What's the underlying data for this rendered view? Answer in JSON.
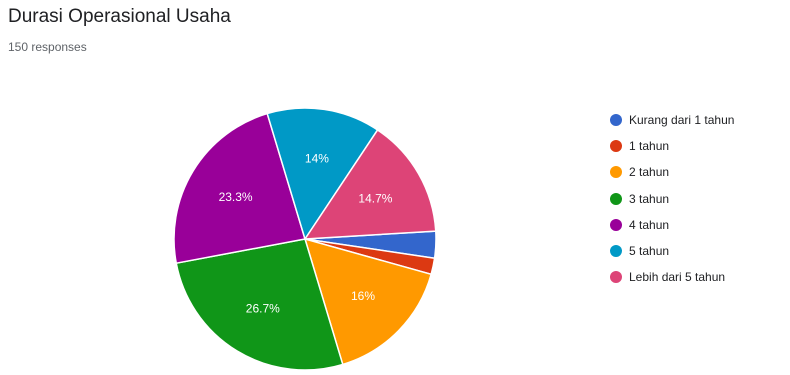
{
  "header": {
    "title": "Durasi Operasional Usaha",
    "subtitle": "150 responses"
  },
  "chart_data": {
    "type": "pie",
    "title": "Durasi Operasional Usaha",
    "subtitle": "150 responses",
    "legend_position": "right",
    "categories": [
      "Kurang dari 1 tahun",
      "1 tahun",
      "2 tahun",
      "3 tahun",
      "4 tahun",
      "5 tahun",
      "Lebih dari 5 tahun"
    ],
    "values": [
      3.3,
      2,
      16,
      26.7,
      23.3,
      14,
      14.7
    ],
    "labels": [
      "",
      "",
      "16%",
      "26.7%",
      "23.3%",
      "14%",
      "14.7%"
    ],
    "colors": [
      "#3366cc",
      "#dc3912",
      "#ff9900",
      "#109618",
      "#990099",
      "#0099c6",
      "#dd4477"
    ]
  }
}
